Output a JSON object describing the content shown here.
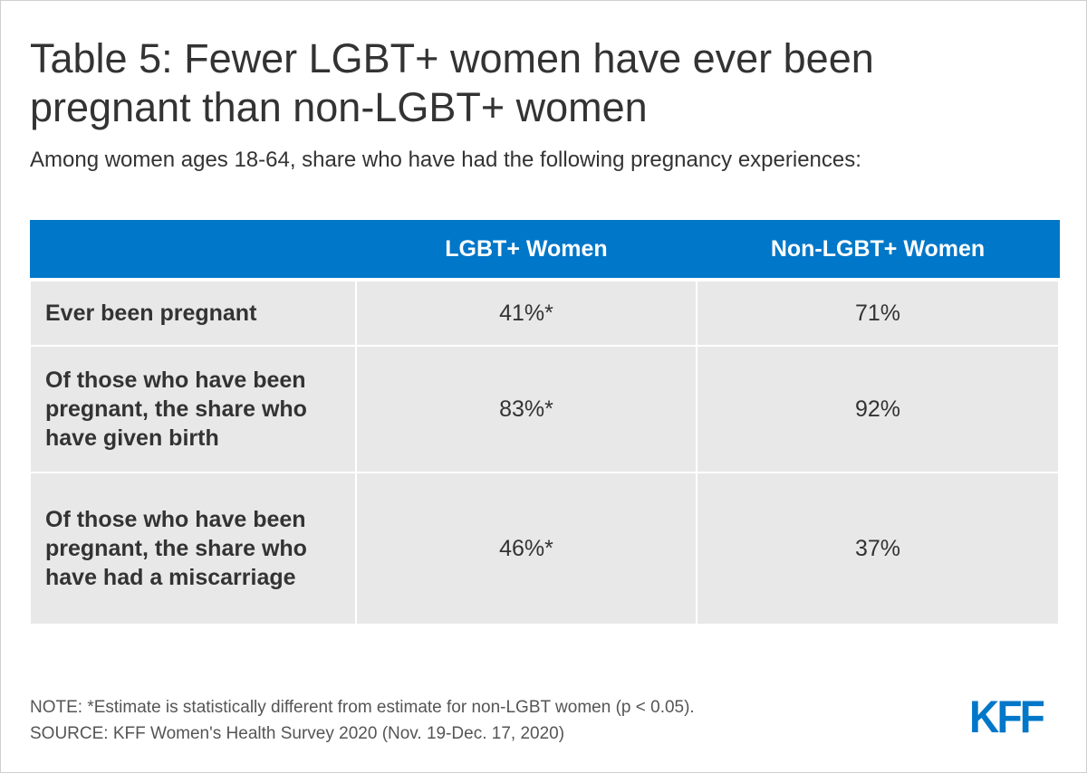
{
  "title": "Table 5: Fewer LGBT+ women have ever been pregnant than non-LGBT+ women",
  "subtitle": "Among women ages 18-64, share who have had the following pregnancy experiences:",
  "colors": {
    "header_bg": "#0077c8",
    "cell_bg": "#e8e8e8",
    "logo": "#0077c8"
  },
  "chart_data": {
    "type": "table",
    "columns": [
      "",
      "LGBT+ Women",
      "Non-LGBT+ Women"
    ],
    "rows": [
      {
        "label": "Ever been pregnant",
        "values": [
          "41%*",
          "71%"
        ]
      },
      {
        "label": "Of those who have been pregnant, the share who have given birth",
        "values": [
          "83%*",
          "92%"
        ]
      },
      {
        "label": "Of those who have been pregnant, the share who have had a miscarriage",
        "values": [
          "46%*",
          "37%"
        ]
      }
    ],
    "series": [
      {
        "name": "LGBT+ Women",
        "values": [
          41,
          83,
          46
        ]
      },
      {
        "name": "Non-LGBT+ Women",
        "values": [
          71,
          92,
          37
        ]
      }
    ]
  },
  "footer": {
    "note": "NOTE: *Estimate is statistically different from estimate for non-LGBT women (p < 0.05).",
    "source": "SOURCE: KFF Women's Health Survey 2020 (Nov. 19-Dec. 17, 2020)"
  },
  "logo": "KFF"
}
